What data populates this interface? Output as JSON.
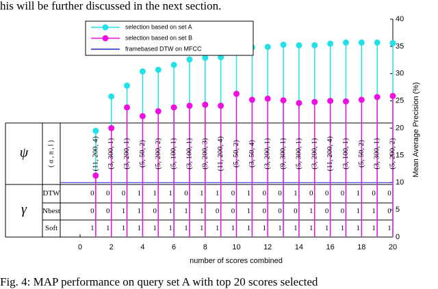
{
  "top_text": "his will be further discussed in the next section.",
  "caption": "Fig. 4: MAP performance on query set A with top 20 scores selected",
  "chart_data": {
    "type": "stem",
    "xlabel": "number of scores combined",
    "ylabel": "Mean Average Precision (%)",
    "x": [
      1,
      2,
      3,
      4,
      5,
      6,
      7,
      8,
      9,
      10,
      11,
      12,
      13,
      14,
      15,
      16,
      17,
      18,
      19,
      20
    ],
    "series": [
      {
        "name": "selection based on set A",
        "color": "#22e0e8",
        "values": [
          19.5,
          25.8,
          27.8,
          30.4,
          30.7,
          31.6,
          32.6,
          32.9,
          33.0,
          34.5,
          34.8,
          34.9,
          35.3,
          35.2,
          35.2,
          35.5,
          35.7,
          35.7,
          35.7,
          35.6
        ]
      },
      {
        "name": "selection based on set B",
        "color": "#ee10e0",
        "values": [
          11.3,
          20.0,
          23.8,
          22.2,
          23.1,
          23.8,
          24.1,
          24.3,
          24.1,
          26.3,
          25.2,
          25.4,
          25.1,
          24.6,
          24.8,
          25.0,
          24.9,
          25.2,
          25.7,
          25.9
        ]
      }
    ],
    "reference_line": {
      "name": "framebased DTW on MFCC",
      "color": "#2020d0",
      "value": 10
    },
    "xlim": [
      0,
      20
    ],
    "xticks": [
      0,
      2,
      4,
      6,
      8,
      10,
      12,
      14,
      16,
      18,
      20
    ],
    "ylim": [
      0,
      40
    ],
    "yticks": [
      0,
      5,
      10,
      15,
      20,
      25,
      30,
      35,
      40
    ],
    "legend": "upper left",
    "table": {
      "psi": "ψ",
      "gamma": "γ",
      "psi_header": "( α , n , l )",
      "psi_values": [
        "(11, 200, 4)",
        "(3, 300, 1)",
        "(3, 200, 1)",
        "(5, 50, 2)",
        "(5, 200, 2)",
        "(5, 100, 1)",
        "(3, 100, 1)",
        "(9, 200, 3)",
        "(11, 200, 4)",
        "(5, 50, 2)",
        "(3, 50, 4)",
        "(3, 200, 1)",
        "(9, 300, 1)",
        "(5, 300, 1)",
        "(3, 200, 1)",
        "(11, 200, 4)",
        "(3, 100, 1)",
        "(5, 50, 2)",
        "(3, 300, 1)",
        "(5, 200, 2)"
      ],
      "gamma_rows": [
        {
          "label": "DTW",
          "values": [
            0,
            0,
            0,
            1,
            1,
            1,
            0,
            1,
            1,
            0,
            1,
            0,
            0,
            1,
            0,
            0,
            0,
            1,
            0,
            0
          ]
        },
        {
          "label": "Nbest",
          "values": [
            0,
            0,
            1,
            1,
            0,
            1,
            1,
            1,
            0,
            0,
            1,
            0,
            0,
            0,
            1,
            0,
            0,
            1,
            1,
            0
          ]
        },
        {
          "label": "Soft",
          "values": [
            1,
            1,
            1,
            1,
            1,
            1,
            1,
            1,
            1,
            1,
            1,
            1,
            1,
            1,
            1,
            1,
            1,
            1,
            1,
            1
          ]
        }
      ]
    }
  }
}
